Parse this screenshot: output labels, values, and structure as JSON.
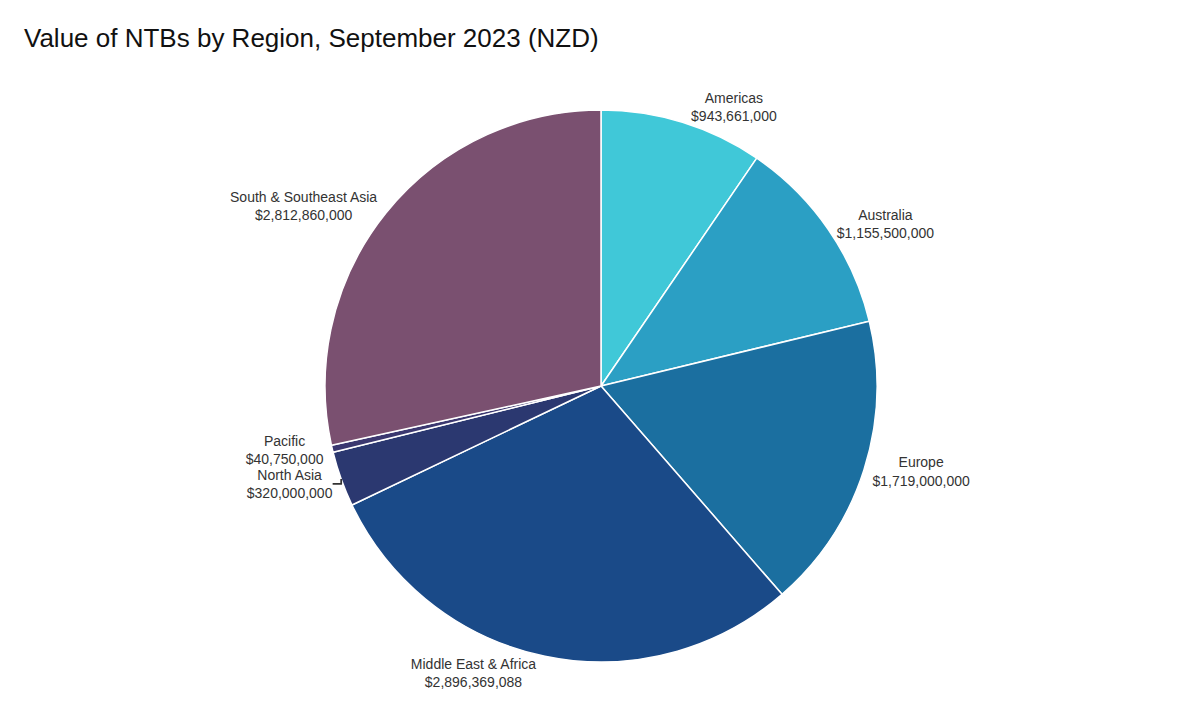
{
  "chart_data": {
    "type": "pie",
    "title": "Value of NTBs by Region, September 2023 (NZD)",
    "categories": [
      "Americas",
      "Australia",
      "Europe",
      "Middle East & Africa",
      "North Asia",
      "Pacific",
      "South & Southeast Asia"
    ],
    "values": [
      943661000,
      1155500000,
      1719000000,
      2896369088,
      320000000,
      40750000,
      2812860000
    ],
    "value_labels": [
      "$943,661,000",
      "$1,155,500,000",
      "$1,719,000,000",
      "$2,896,369,088",
      "$320,000,000",
      "$40,750,000",
      "$2,812,860,000"
    ],
    "colors": [
      "#40C8D8",
      "#2B9FC4",
      "#1B6FA0",
      "#1A4A88",
      "#2B3870",
      "#3B3870",
      "#7A5070"
    ],
    "data_labels": true
  }
}
